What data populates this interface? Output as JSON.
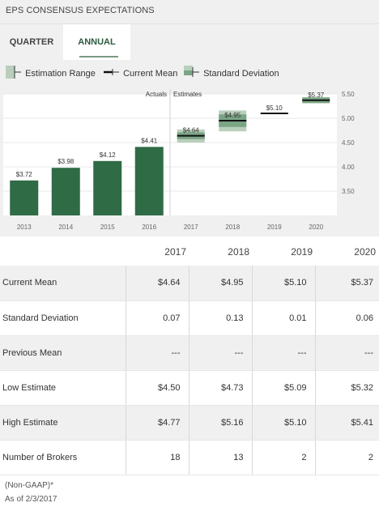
{
  "header": {
    "title": "EPS CONSENSUS EXPECTATIONS"
  },
  "tabs": [
    {
      "label": "QUARTER"
    },
    {
      "label": "ANNUAL"
    }
  ],
  "legend": {
    "range": "Estimation Range",
    "mean": "Current Mean",
    "std": "Standard Deviation"
  },
  "colors": {
    "bar": "#2f6b45",
    "range": "#b9cfbc",
    "std": "#7aa585",
    "mean": "#111111",
    "panel": "#f0f0f0"
  },
  "chart_data": {
    "type": "bar",
    "actuals_label": "Actuals",
    "estimates_label": "Estimates",
    "categories": [
      "2013",
      "2014",
      "2015",
      "2016",
      "2017",
      "2018",
      "2019",
      "2020"
    ],
    "actuals": [
      {
        "year": "2013",
        "value": 3.72,
        "label": "$3.72"
      },
      {
        "year": "2014",
        "value": 3.98,
        "label": "$3.98"
      },
      {
        "year": "2015",
        "value": 4.12,
        "label": "$4.12"
      },
      {
        "year": "2016",
        "value": 4.41,
        "label": "$4.41"
      }
    ],
    "estimates": [
      {
        "year": "2017",
        "mean": 4.64,
        "label": "$4.64",
        "low": 4.5,
        "high": 4.77,
        "std": 0.07
      },
      {
        "year": "2018",
        "mean": 4.95,
        "label": "$4.95",
        "low": 4.73,
        "high": 5.16,
        "std": 0.13
      },
      {
        "year": "2019",
        "mean": 5.1,
        "label": "$5.10",
        "low": 5.09,
        "high": 5.1,
        "std": 0.01
      },
      {
        "year": "2020",
        "mean": 5.37,
        "label": "$5.37",
        "low": 5.32,
        "high": 5.41,
        "std": 0.06
      }
    ],
    "yticks": [
      {
        "value": 5.5,
        "label": "5.50"
      },
      {
        "value": 5.0,
        "label": "5.00"
      },
      {
        "value": 4.5,
        "label": "4.50"
      },
      {
        "value": 4.0,
        "label": "4.00"
      },
      {
        "value": 3.5,
        "label": "3.50"
      }
    ],
    "ylim": [
      3.0,
      5.5
    ]
  },
  "table": {
    "columns": [
      "2017",
      "2018",
      "2019",
      "2020"
    ],
    "rows": [
      {
        "label": "Current Mean",
        "values": [
          "$4.64",
          "$4.95",
          "$5.10",
          "$5.37"
        ]
      },
      {
        "label": "Standard Deviation",
        "values": [
          "0.07",
          "0.13",
          "0.01",
          "0.06"
        ]
      },
      {
        "label": "Previous Mean",
        "values": [
          "---",
          "---",
          "---",
          "---"
        ]
      },
      {
        "label": "Low Estimate",
        "values": [
          "$4.50",
          "$4.73",
          "$5.09",
          "$5.32"
        ]
      },
      {
        "label": "High Estimate",
        "values": [
          "$4.77",
          "$5.16",
          "$5.10",
          "$5.41"
        ]
      },
      {
        "label": "Number of Brokers",
        "values": [
          "18",
          "13",
          "2",
          "2"
        ]
      }
    ]
  },
  "footnote": {
    "line1": "(Non-GAAP)*",
    "line2": "As of 2/3/2017"
  }
}
